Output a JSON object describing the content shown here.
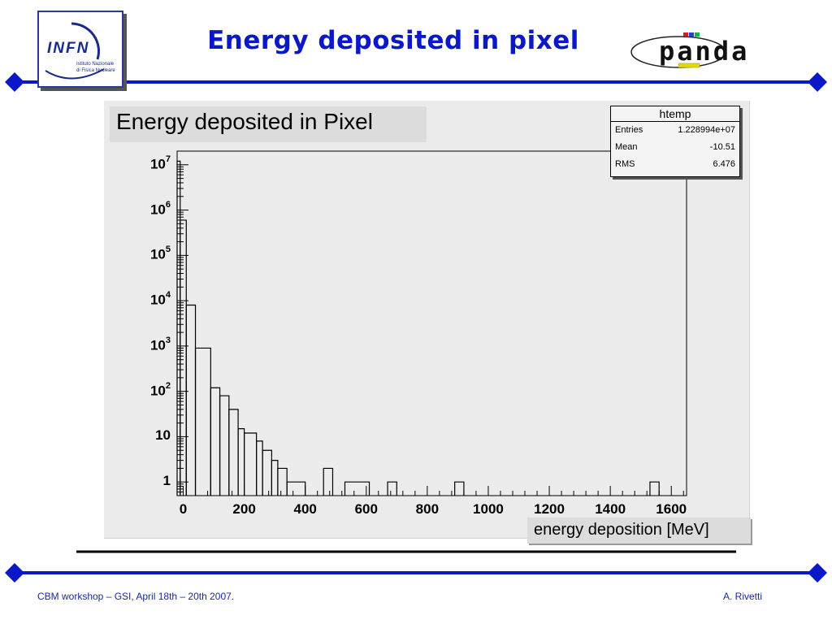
{
  "slide": {
    "title": "Energy deposited in pixel",
    "footer_left": "CBM workshop – GSI, April 18th – 20th 2007.",
    "footer_right": "A. Rivetti",
    "accent": "#0a18c8"
  },
  "logos": {
    "left": {
      "text": "INFN",
      "subtext_line1": "Istituto Nazionale",
      "subtext_line2": "di Fisica Nucleare"
    },
    "right": {
      "text": "panda"
    }
  },
  "stats": {
    "name": "htemp",
    "entries_label": "Entries",
    "entries_value": "1.228994e+07",
    "mean_label": "Mean",
    "mean_value": "-10.51",
    "rms_label": "RMS",
    "rms_value": "6.476"
  },
  "chart_data": {
    "type": "bar",
    "style": "step-histogram",
    "title": "Energy deposited in Pixel",
    "xlabel": "energy deposition [MeV]",
    "ylabel": "",
    "xlim": [
      -20,
      1650
    ],
    "ylim": [
      0.5,
      20000000
    ],
    "y_scale": "log",
    "grid": false,
    "x_tick_labels": [
      "0",
      "200",
      "400",
      "600",
      "800",
      "1000",
      "1200",
      "1400",
      "1600"
    ],
    "x_ticks": [
      0,
      200,
      400,
      600,
      800,
      1000,
      1200,
      1400,
      1600
    ],
    "y_ticks": [
      {
        "value": 1,
        "base": "1",
        "exp": ""
      },
      {
        "value": 10,
        "base": "10",
        "exp": ""
      },
      {
        "value": 100,
        "base": "10",
        "exp": "2"
      },
      {
        "value": 1000,
        "base": "10",
        "exp": "3"
      },
      {
        "value": 10000,
        "base": "10",
        "exp": "4"
      },
      {
        "value": 100000,
        "base": "10",
        "exp": "5"
      },
      {
        "value": 1000000,
        "base": "10",
        "exp": "6"
      },
      {
        "value": 10000000,
        "base": "10",
        "exp": "7"
      }
    ],
    "bins": [
      {
        "x0": -20,
        "x1": -10,
        "y": 12000000
      },
      {
        "x0": -10,
        "x1": 10,
        "y": 600000
      },
      {
        "x0": 10,
        "x1": 40,
        "y": 8000
      },
      {
        "x0": 40,
        "x1": 90,
        "y": 900
      },
      {
        "x0": 90,
        "x1": 120,
        "y": 120
      },
      {
        "x0": 120,
        "x1": 150,
        "y": 80
      },
      {
        "x0": 150,
        "x1": 180,
        "y": 40
      },
      {
        "x0": 180,
        "x1": 200,
        "y": 15
      },
      {
        "x0": 200,
        "x1": 240,
        "y": 12
      },
      {
        "x0": 240,
        "x1": 260,
        "y": 8
      },
      {
        "x0": 260,
        "x1": 290,
        "y": 5
      },
      {
        "x0": 290,
        "x1": 310,
        "y": 3
      },
      {
        "x0": 310,
        "x1": 340,
        "y": 2
      },
      {
        "x0": 340,
        "x1": 400,
        "y": 1
      },
      {
        "x0": 460,
        "x1": 490,
        "y": 2
      },
      {
        "x0": 530,
        "x1": 610,
        "y": 1
      },
      {
        "x0": 670,
        "x1": 700,
        "y": 1
      },
      {
        "x0": 890,
        "x1": 920,
        "y": 1
      },
      {
        "x0": 1530,
        "x1": 1560,
        "y": 1
      }
    ]
  }
}
